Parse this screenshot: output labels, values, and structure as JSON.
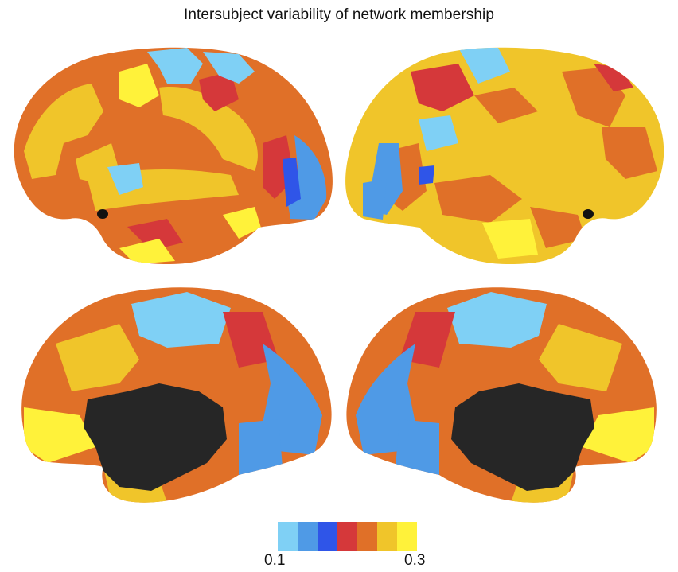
{
  "title": "Intersubject variability of network membership",
  "colorbar": {
    "min_label": "0.1",
    "max_label": "0.3",
    "colors": [
      "#7fd0f5",
      "#4f9ae6",
      "#2f55e8",
      "#d5383a",
      "#e07028",
      "#f0c52a",
      "#fff23a"
    ]
  },
  "palette": {
    "light_blue": "#7fd0f5",
    "mid_blue": "#4f9ae6",
    "blue": "#2f55e8",
    "red": "#d5383a",
    "orange": "#e07028",
    "gold": "#f0c52a",
    "yellow": "#fff23a",
    "medial_wall": "#262626"
  }
}
